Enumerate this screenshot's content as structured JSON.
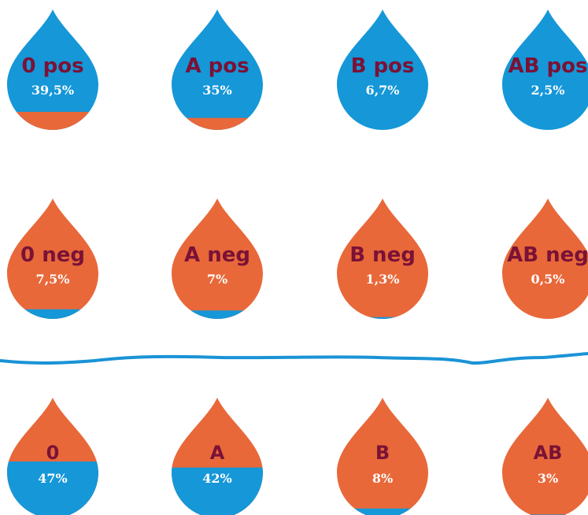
{
  "colors": {
    "positive": "#1597d8",
    "negative": "#e8683a",
    "label": "#7a1236",
    "percent": "#ffffff",
    "divider": "#1a93d6"
  },
  "rows": [
    {
      "drops": [
        {
          "label": "0 pos",
          "percent": "39,5%",
          "base": "positive",
          "fill_fraction": 0.15
        },
        {
          "label": "A pos",
          "percent": "35%",
          "base": "positive",
          "fill_fraction": 0.1
        },
        {
          "label": "B pos",
          "percent": "6,7%",
          "base": "positive",
          "fill_fraction": 0
        },
        {
          "label": "AB pos",
          "percent": "2,5%",
          "base": "positive",
          "fill_fraction": 0
        }
      ]
    },
    {
      "drops": [
        {
          "label": "0 neg",
          "percent": "7,5%",
          "base": "negative",
          "fill_fraction": 0.08
        },
        {
          "label": "A neg",
          "percent": "7%",
          "base": "negative",
          "fill_fraction": 0.07
        },
        {
          "label": "B neg",
          "percent": "1,3%",
          "base": "negative",
          "fill_fraction": 0.015
        },
        {
          "label": "AB neg",
          "percent": "0,5%",
          "base": "negative",
          "fill_fraction": 0
        }
      ]
    },
    {
      "drops": [
        {
          "label": "0",
          "percent": "47%",
          "base": "negative",
          "fill_fraction": 0.47
        },
        {
          "label": "A",
          "percent": "42%",
          "base": "negative",
          "fill_fraction": 0.42
        },
        {
          "label": "B",
          "percent": "8%",
          "base": "negative",
          "fill_fraction": 0.08
        },
        {
          "label": "AB",
          "percent": "3%",
          "base": "negative",
          "fill_fraction": 0.03
        }
      ]
    }
  ]
}
